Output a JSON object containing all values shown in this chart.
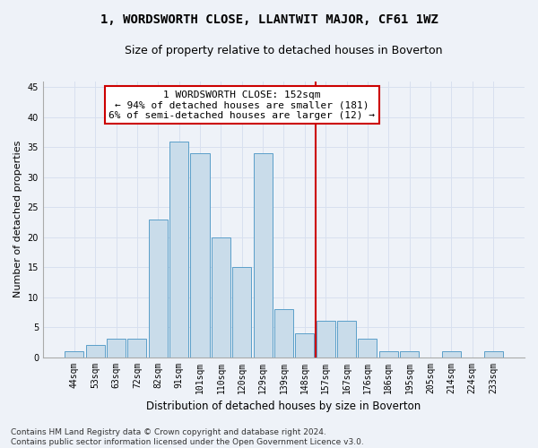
{
  "title": "1, WORDSWORTH CLOSE, LLANTWIT MAJOR, CF61 1WZ",
  "subtitle": "Size of property relative to detached houses in Boverton",
  "xlabel": "Distribution of detached houses by size in Boverton",
  "ylabel": "Number of detached properties",
  "bar_labels": [
    "44sqm",
    "53sqm",
    "63sqm",
    "72sqm",
    "82sqm",
    "91sqm",
    "101sqm",
    "110sqm",
    "120sqm",
    "129sqm",
    "139sqm",
    "148sqm",
    "157sqm",
    "167sqm",
    "176sqm",
    "186sqm",
    "195sqm",
    "205sqm",
    "214sqm",
    "224sqm",
    "233sqm"
  ],
  "bar_values": [
    1,
    2,
    3,
    3,
    23,
    36,
    34,
    20,
    15,
    34,
    8,
    4,
    6,
    6,
    3,
    1,
    1,
    0,
    1,
    0,
    1
  ],
  "bar_color": "#c9dcea",
  "bar_edge_color": "#5b9fc9",
  "vline_color": "#cc0000",
  "vline_pos": 11.5,
  "annotation_text": "1 WORDSWORTH CLOSE: 152sqm\n← 94% of detached houses are smaller (181)\n6% of semi-detached houses are larger (12) →",
  "ylim_max": 46,
  "yticks": [
    0,
    5,
    10,
    15,
    20,
    25,
    30,
    35,
    40,
    45
  ],
  "bg_color": "#eef2f8",
  "grid_color": "#d8e0ef",
  "title_fontsize": 10,
  "subtitle_fontsize": 9,
  "ylabel_fontsize": 8,
  "xlabel_fontsize": 8.5,
  "tick_fontsize": 7,
  "annot_fontsize": 8,
  "footer_fontsize": 6.5,
  "footer": "Contains HM Land Registry data © Crown copyright and database right 2024.\nContains public sector information licensed under the Open Government Licence v3.0."
}
